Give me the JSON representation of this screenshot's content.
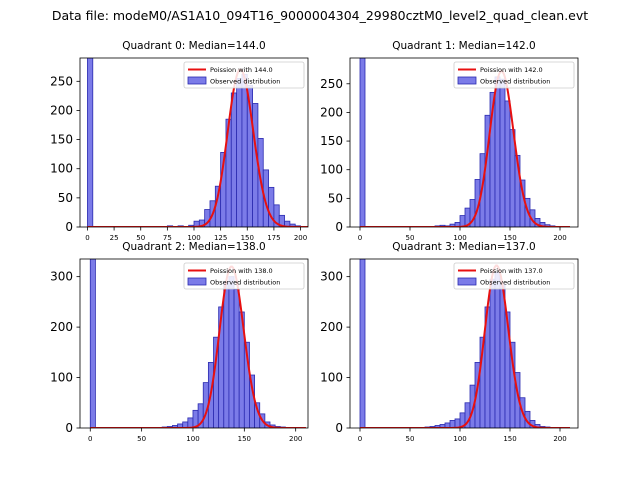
{
  "suptitle": "Data file: modeM0/AS1A10_094T16_9000004304_29980cztM0_level2_quad_clean.evt",
  "colors": {
    "bar_fill": "#7b7be8",
    "bar_edge": "#2b2bb0",
    "curve": "#e81010",
    "axis": "#000000"
  },
  "chart_data": [
    {
      "type": "bar",
      "title": "Quadrant 0: Median=144.0",
      "legend": [
        "Poission with 144.0",
        "Observed distribution"
      ],
      "legend_position": "top-right",
      "xlim": [
        -7,
        207
      ],
      "ylim": [
        0,
        290
      ],
      "xticks": [
        0,
        25,
        50,
        75,
        100,
        125,
        150,
        175,
        200
      ],
      "yticks": [
        0,
        50,
        100,
        150,
        200,
        250
      ],
      "bin_width": 5,
      "spike": {
        "x": 0,
        "value": 290
      },
      "bins_x": [
        65,
        70,
        75,
        80,
        85,
        90,
        95,
        100,
        105,
        110,
        115,
        120,
        125,
        130,
        135,
        140,
        145,
        150,
        155,
        160,
        165,
        170,
        175,
        180,
        185,
        190,
        195
      ],
      "values": [
        1,
        1,
        2,
        1,
        2,
        1,
        3,
        10,
        12,
        30,
        45,
        70,
        128,
        185,
        230,
        255,
        262,
        243,
        212,
        152,
        98,
        68,
        38,
        20,
        10,
        5,
        2
      ],
      "poisson_mean": 144.0,
      "poisson_peak": 270
    },
    {
      "type": "bar",
      "title": "Quadrant 1: Median=142.0",
      "legend": [
        "Poission with 142.0",
        "Observed distribution"
      ],
      "legend_position": "top-right",
      "xlim": [
        -10,
        218
      ],
      "ylim": [
        0,
        295
      ],
      "xticks": [
        0,
        50,
        100,
        150,
        200
      ],
      "yticks": [
        0,
        50,
        100,
        150,
        200,
        250
      ],
      "bin_width": 5,
      "spike": {
        "x": 0,
        "value": 295
      },
      "bins_x": [
        65,
        70,
        75,
        80,
        85,
        90,
        95,
        100,
        105,
        110,
        115,
        120,
        125,
        130,
        135,
        140,
        145,
        150,
        155,
        160,
        165,
        170,
        175,
        180,
        185,
        190,
        195
      ],
      "values": [
        1,
        1,
        2,
        3,
        2,
        5,
        8,
        20,
        33,
        48,
        83,
        128,
        195,
        235,
        262,
        258,
        220,
        170,
        125,
        82,
        50,
        30,
        15,
        8,
        4,
        2,
        1
      ],
      "poisson_mean": 142.0,
      "poisson_peak": 272
    },
    {
      "type": "bar",
      "title": "Quadrant 2: Median=138.0",
      "legend": [
        "Poission with 138.0",
        "Observed distribution"
      ],
      "legend_position": "top-right",
      "xlim": [
        -10,
        212
      ],
      "ylim": [
        0,
        335
      ],
      "xticks": [
        0,
        50,
        100,
        150,
        200
      ],
      "yticks": [
        0,
        100,
        200,
        300
      ],
      "bin_width": 5,
      "spike": {
        "x": 0,
        "value": 335
      },
      "bins_x": [
        65,
        70,
        75,
        80,
        85,
        90,
        95,
        100,
        105,
        110,
        115,
        120,
        125,
        130,
        135,
        140,
        145,
        150,
        155,
        160,
        165,
        170,
        175,
        180,
        185,
        190
      ],
      "values": [
        1,
        2,
        3,
        5,
        8,
        12,
        20,
        35,
        48,
        90,
        130,
        180,
        240,
        290,
        300,
        275,
        230,
        170,
        105,
        50,
        28,
        12,
        6,
        3,
        2,
        1
      ],
      "poisson_mean": 138.0,
      "poisson_peak": 320
    },
    {
      "type": "bar",
      "title": "Quadrant 3: Median=137.0",
      "legend": [
        "Poission with 137.0",
        "Observed distribution"
      ],
      "legend_position": "top-right",
      "xlim": [
        -10,
        218
      ],
      "ylim": [
        0,
        335
      ],
      "xticks": [
        0,
        50,
        100,
        150,
        200
      ],
      "yticks": [
        0,
        100,
        200,
        300
      ],
      "bin_width": 5,
      "spike": {
        "x": 0,
        "value": 335
      },
      "bins_x": [
        65,
        70,
        75,
        80,
        85,
        90,
        95,
        100,
        105,
        110,
        115,
        120,
        125,
        130,
        135,
        140,
        145,
        150,
        155,
        160,
        165,
        170,
        175,
        180,
        185,
        190
      ],
      "values": [
        2,
        3,
        5,
        7,
        10,
        15,
        18,
        30,
        50,
        85,
        130,
        180,
        240,
        295,
        308,
        285,
        230,
        170,
        110,
        60,
        33,
        15,
        7,
        3,
        2,
        1
      ],
      "poisson_mean": 137.0,
      "poisson_peak": 322
    }
  ]
}
